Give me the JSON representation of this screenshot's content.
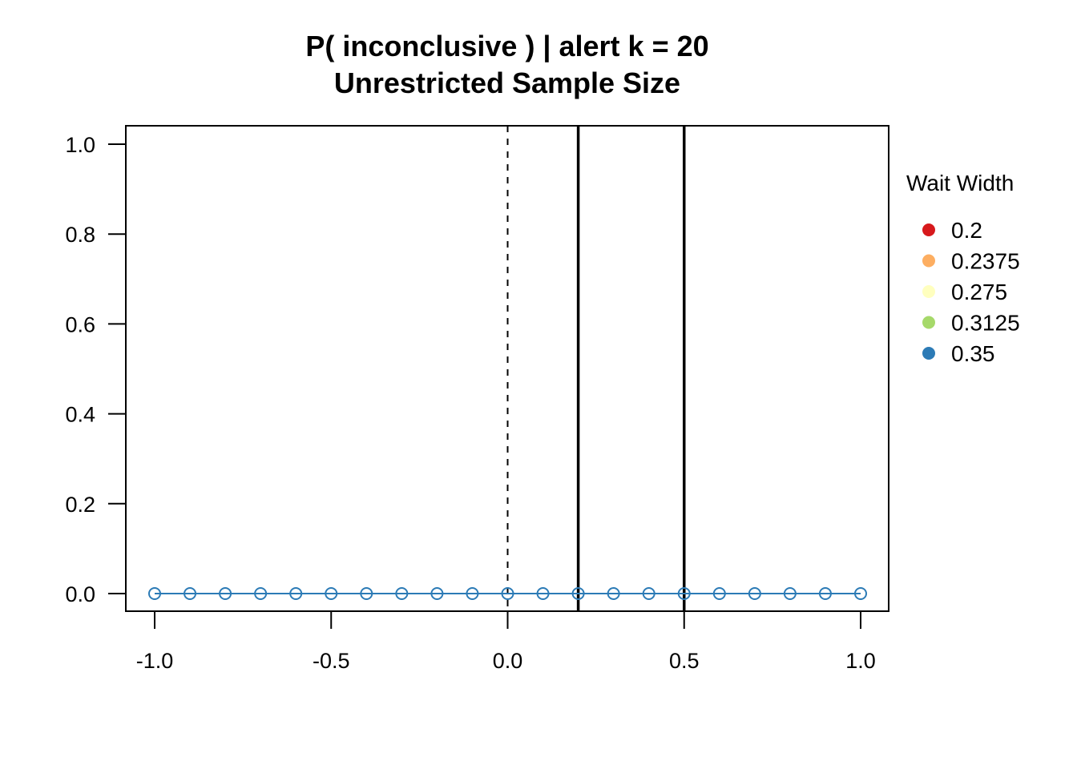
{
  "chart_data": {
    "type": "line",
    "title": "P( inconclusive ) | alert k = 20",
    "subtitle": "Unrestricted Sample Size",
    "xlabel": "",
    "ylabel": "",
    "xlim": [
      -1.0,
      1.0
    ],
    "ylim": [
      0.0,
      1.0
    ],
    "x_ticks": [
      "-1.0",
      "-0.5",
      "0.0",
      "0.5",
      "1.0"
    ],
    "y_ticks": [
      "0.0",
      "0.2",
      "0.4",
      "0.6",
      "0.8",
      "1.0"
    ],
    "grid": false,
    "reference_lines": {
      "dashed_vertical_at": 0.0,
      "solid_vertical_at": [
        0.2,
        0.5
      ]
    },
    "x": [
      -1.0,
      -0.9,
      -0.8,
      -0.7,
      -0.6,
      -0.5,
      -0.4,
      -0.3,
      -0.2,
      -0.1,
      0.0,
      0.1,
      0.2,
      0.3,
      0.4,
      0.5,
      0.6,
      0.7,
      0.8,
      0.9,
      1.0
    ],
    "series": [
      {
        "name": "0.35",
        "color": "#2C7BB6",
        "marker": "open-circle",
        "values": [
          0,
          0,
          0,
          0,
          0,
          0,
          0,
          0,
          0,
          0,
          0,
          0,
          0,
          0,
          0,
          0,
          0,
          0,
          0,
          0,
          0
        ]
      }
    ],
    "legend": {
      "title": "Wait Width",
      "placement": "right",
      "items": [
        {
          "label": "0.2",
          "color": "#D7191C"
        },
        {
          "label": "0.2375",
          "color": "#FDAE61"
        },
        {
          "label": "0.275",
          "color": "#FFFFBF"
        },
        {
          "label": "0.3125",
          "color": "#A6D96A"
        },
        {
          "label": "0.35",
          "color": "#2C7BB6"
        }
      ]
    }
  }
}
